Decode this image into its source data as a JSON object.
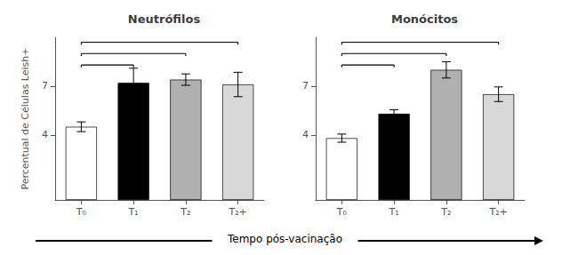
{
  "chart_data": [
    {
      "type": "bar",
      "title": "Neutrófilos",
      "xlabel": "Tempo pós-vacinação",
      "ylabel": "Percentual de Células Leish+",
      "categories": [
        "T₀",
        "T₁",
        "T₂",
        "T₂+"
      ],
      "values": [
        4.5,
        7.2,
        7.4,
        7.1
      ],
      "errors": [
        0.3,
        0.9,
        0.35,
        0.75
      ],
      "colors": [
        "white",
        "black",
        "#b0b0b0",
        "#d8d8d8"
      ],
      "ylim": [
        0,
        10
      ],
      "yticks": [
        4,
        7
      ],
      "grid": false,
      "brackets": [
        {
          "from": "T₀",
          "to": "T₁",
          "y": 8.3
        },
        {
          "from": "T₀",
          "to": "T₂",
          "y": 9.0
        },
        {
          "from": "T₀",
          "to": "T₂+",
          "y": 9.7
        }
      ]
    },
    {
      "type": "bar",
      "title": "Monócitos",
      "categories": [
        "T₀",
        "T₁",
        "T₂",
        "T₂+"
      ],
      "values": [
        3.8,
        5.3,
        8.0,
        6.5
      ],
      "errors": [
        0.25,
        0.25,
        0.5,
        0.45
      ],
      "colors": [
        "white",
        "black",
        "#b0b0b0",
        "#d8d8d8"
      ],
      "ylim": [
        0,
        10
      ],
      "yticks": [
        4,
        7
      ],
      "grid": false,
      "brackets": [
        {
          "from": "T₀",
          "to": "T₁",
          "y": 8.3
        },
        {
          "from": "T₀",
          "to": "T₂",
          "y": 9.0
        },
        {
          "from": "T₀",
          "to": "T₂+",
          "y": 9.7
        }
      ]
    }
  ]
}
